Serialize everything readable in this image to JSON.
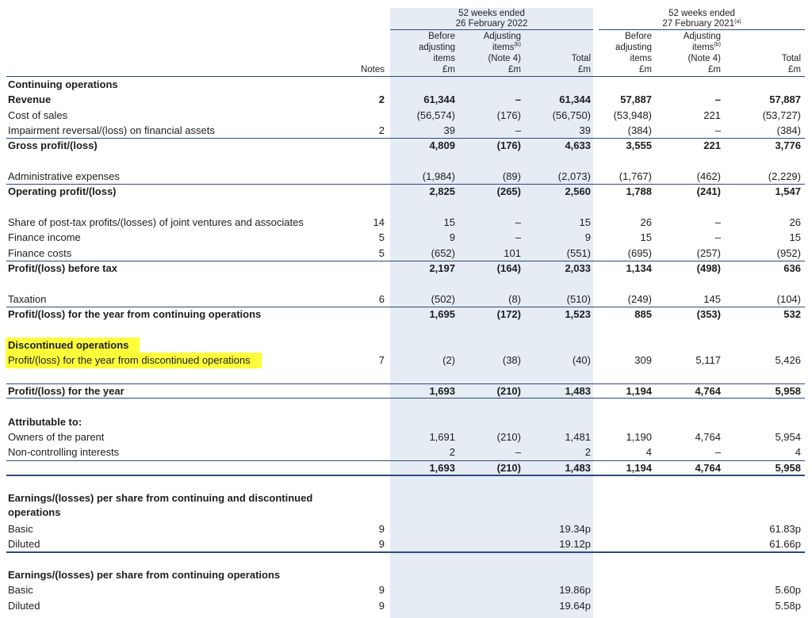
{
  "header": {
    "period_2022": [
      "52 weeks ended",
      "26 February 2022"
    ],
    "period_2021": [
      "52 weeks ended",
      "27 February 2021"
    ],
    "period_2021_note": "(a)",
    "notes": "Notes",
    "col_before": [
      "Before",
      "adjusting",
      "items",
      "£m"
    ],
    "col_adjusting": [
      "Adjusting",
      "items",
      "(Note 4)",
      "£m"
    ],
    "col_adjusting_note": "(b)",
    "col_total": [
      "Total",
      "£m"
    ]
  },
  "rows": [
    {
      "label": "Continuing operations",
      "style": "bold",
      "notes": "",
      "v": [
        "",
        "",
        "",
        "",
        "",
        ""
      ]
    },
    {
      "label": "Revenue",
      "style": "bold",
      "notes": "2",
      "v": [
        "61,344",
        "–",
        "61,344",
        "57,887",
        "–",
        "57,887"
      ]
    },
    {
      "label": "Cost of sales",
      "notes": "",
      "v": [
        "(56,574)",
        "(176)",
        "(56,750)",
        "(53,948)",
        "221",
        "(53,727)"
      ]
    },
    {
      "label": "Impairment reversal/(loss) on financial assets",
      "notes": "2",
      "v": [
        "39",
        "–",
        "39",
        "(384)",
        "–",
        "(384)"
      ]
    },
    {
      "label": "Gross profit/(loss)",
      "style": "bold",
      "rule": "above",
      "notes": "",
      "v": [
        "4,809",
        "(176)",
        "4,633",
        "3,555",
        "221",
        "3,776"
      ]
    },
    {
      "spacer": true
    },
    {
      "label": "Administrative expenses",
      "notes": "",
      "v": [
        "(1,984)",
        "(89)",
        "(2,073)",
        "(1,767)",
        "(462)",
        "(2,229)"
      ]
    },
    {
      "label": "Operating profit/(loss)",
      "style": "bold",
      "rule": "above",
      "notes": "",
      "v": [
        "2,825",
        "(265)",
        "2,560",
        "1,788",
        "(241)",
        "1,547"
      ]
    },
    {
      "spacer": true
    },
    {
      "label": "Share of post-tax profits/(losses) of joint ventures and associates",
      "notes": "14",
      "v": [
        "15",
        "–",
        "15",
        "26",
        "–",
        "26"
      ]
    },
    {
      "label": "Finance income",
      "notes": "5",
      "v": [
        "9",
        "–",
        "9",
        "15",
        "–",
        "15"
      ]
    },
    {
      "label": "Finance costs",
      "notes": "5",
      "v": [
        "(652)",
        "101",
        "(551)",
        "(695)",
        "(257)",
        "(952)"
      ]
    },
    {
      "label": "Profit/(loss) before tax",
      "style": "bold",
      "rule": "above",
      "notes": "",
      "v": [
        "2,197",
        "(164)",
        "2,033",
        "1,134",
        "(498)",
        "636"
      ]
    },
    {
      "spacer": true
    },
    {
      "label": "Taxation",
      "notes": "6",
      "v": [
        "(502)",
        "(8)",
        "(510)",
        "(249)",
        "145",
        "(104)"
      ]
    },
    {
      "label": "Profit/(loss) for the year from continuing operations",
      "style": "bold",
      "rule": "above",
      "notes": "",
      "v": [
        "1,695",
        "(172)",
        "1,523",
        "885",
        "(353)",
        "532"
      ]
    },
    {
      "spacer": true
    },
    {
      "label": "Discontinued operations",
      "style": "bold",
      "highlight": true,
      "notes": "",
      "v": [
        "",
        "",
        "",
        "",
        "",
        ""
      ]
    },
    {
      "label": "Profit/(loss) for the year from discontinued operations",
      "highlight": true,
      "notes": "7",
      "v": [
        "(2)",
        "(38)",
        "(40)",
        "309",
        "5,117",
        "5,426"
      ]
    },
    {
      "spacer": true
    },
    {
      "label": "Profit/(loss) for the year",
      "style": "bold",
      "rule": "above below",
      "notes": "",
      "v": [
        "1,693",
        "(210)",
        "1,483",
        "1,194",
        "4,764",
        "5,958"
      ]
    },
    {
      "spacer": true
    },
    {
      "label": "Attributable to:",
      "style": "bold",
      "notes": "",
      "v": [
        "",
        "",
        "",
        "",
        "",
        ""
      ]
    },
    {
      "label": "Owners of the parent",
      "notes": "",
      "v": [
        "1,691",
        "(210)",
        "1,481",
        "1,190",
        "4,764",
        "5,954"
      ]
    },
    {
      "label": "Non-controlling interests",
      "notes": "",
      "v": [
        "2",
        "–",
        "2",
        "4",
        "–",
        "4"
      ]
    },
    {
      "label": "",
      "style": "bold",
      "rule": "above below2",
      "notes": "",
      "v": [
        "1,693",
        "(210)",
        "1,483",
        "1,194",
        "4,764",
        "5,958"
      ]
    },
    {
      "spacer": true
    },
    {
      "label": "Earnings/(losses) per share from continuing and discontinued operations",
      "style": "bold",
      "two": true,
      "notes": "",
      "v": [
        "",
        "",
        "",
        "",
        "",
        ""
      ]
    },
    {
      "label": "Basic",
      "notes": "9",
      "v": [
        "",
        "",
        "19.34p",
        "",
        "",
        "61.83p"
      ]
    },
    {
      "label": "Diluted",
      "rule": "below2",
      "notes": "9",
      "v": [
        "",
        "",
        "19.12p",
        "",
        "",
        "61.66p"
      ]
    },
    {
      "spacer": true
    },
    {
      "label": "Earnings/(losses) per share from continuing operations",
      "style": "bold",
      "notes": "",
      "v": [
        "",
        "",
        "",
        "",
        "",
        ""
      ]
    },
    {
      "label": "Basic",
      "notes": "9",
      "v": [
        "",
        "",
        "19.86p",
        "",
        "",
        "5.60p"
      ]
    },
    {
      "label": "Diluted",
      "notes": "9",
      "v": [
        "",
        "",
        "19.64p",
        "",
        "",
        "5.58p"
      ]
    }
  ]
}
